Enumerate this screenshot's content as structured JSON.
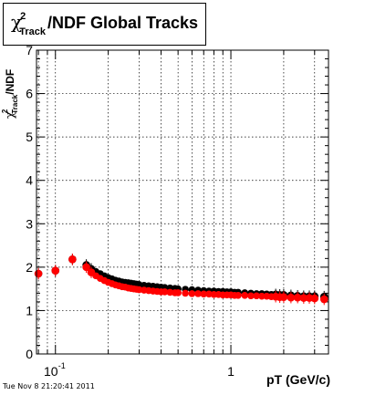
{
  "title": {
    "symbol": "χ",
    "superscript": "2",
    "subscript": "Track",
    "rest": "/NDF  Global Tracks"
  },
  "footer": {
    "timestamp": "Tue Nov  8 21:20:41 2011"
  },
  "chart_data": {
    "type": "scatter",
    "xlabel": "pT (GeV/c)",
    "ylabel": {
      "symbol": "χ",
      "superscript": "2",
      "subscript": "Track",
      "rest": "/NDF"
    },
    "x_scale": "log",
    "xlim": [
      0.078,
      3.6
    ],
    "ylim": [
      0,
      7
    ],
    "x_ticks": [
      {
        "value": 0.1,
        "base": "10",
        "exponent": "-1"
      },
      {
        "value": 1,
        "base": "1",
        "exponent": ""
      }
    ],
    "y_ticks": [
      "0",
      "1",
      "2",
      "3",
      "4",
      "5",
      "6",
      "7"
    ],
    "grid": true,
    "colors": {
      "black_series": "#000000",
      "red_series": "#ff0000"
    },
    "series": [
      {
        "color": "black",
        "x": [
          0.08,
          0.1,
          0.125,
          0.15,
          0.16,
          0.17,
          0.18,
          0.19,
          0.2,
          0.21,
          0.22,
          0.23,
          0.24,
          0.25,
          0.26,
          0.27,
          0.28,
          0.29,
          0.3,
          0.32,
          0.34,
          0.36,
          0.38,
          0.4,
          0.42,
          0.45,
          0.48,
          0.5,
          0.55,
          0.6,
          0.65,
          0.7,
          0.75,
          0.8,
          0.85,
          0.9,
          0.95,
          1.0,
          1.05,
          1.1,
          1.2,
          1.3,
          1.4,
          1.5,
          1.6,
          1.7,
          1.8,
          1.9,
          2.0,
          2.2,
          2.4,
          2.6,
          2.8,
          3.0,
          3.4
        ],
        "y": [
          1.85,
          1.92,
          2.18,
          2.05,
          1.96,
          1.9,
          1.85,
          1.8,
          1.76,
          1.73,
          1.7,
          1.68,
          1.66,
          1.65,
          1.64,
          1.63,
          1.62,
          1.61,
          1.6,
          1.58,
          1.57,
          1.56,
          1.55,
          1.54,
          1.53,
          1.52,
          1.51,
          1.5,
          1.49,
          1.48,
          1.47,
          1.46,
          1.45,
          1.45,
          1.44,
          1.44,
          1.43,
          1.43,
          1.42,
          1.42,
          1.41,
          1.4,
          1.39,
          1.39,
          1.38,
          1.37,
          1.37,
          1.36,
          1.36,
          1.35,
          1.34,
          1.33,
          1.33,
          1.33,
          1.32
        ]
      },
      {
        "color": "red",
        "x": [
          0.08,
          0.1,
          0.125,
          0.15,
          0.16,
          0.17,
          0.18,
          0.19,
          0.2,
          0.21,
          0.22,
          0.23,
          0.24,
          0.25,
          0.26,
          0.27,
          0.28,
          0.29,
          0.3,
          0.32,
          0.34,
          0.36,
          0.38,
          0.4,
          0.42,
          0.45,
          0.48,
          0.5,
          0.55,
          0.6,
          0.65,
          0.7,
          0.75,
          0.8,
          0.85,
          0.9,
          0.95,
          1.0,
          1.05,
          1.1,
          1.2,
          1.3,
          1.4,
          1.5,
          1.6,
          1.7,
          1.8,
          1.9,
          2.0,
          2.2,
          2.4,
          2.6,
          2.8,
          3.0,
          3.4
        ],
        "y": [
          1.85,
          1.92,
          2.18,
          2.0,
          1.88,
          1.8,
          1.74,
          1.69,
          1.65,
          1.62,
          1.59,
          1.57,
          1.55,
          1.54,
          1.52,
          1.51,
          1.5,
          1.49,
          1.48,
          1.47,
          1.46,
          1.45,
          1.44,
          1.43,
          1.43,
          1.42,
          1.41,
          1.41,
          1.4,
          1.39,
          1.39,
          1.38,
          1.38,
          1.37,
          1.37,
          1.36,
          1.36,
          1.36,
          1.35,
          1.35,
          1.35,
          1.34,
          1.34,
          1.33,
          1.33,
          1.32,
          1.32,
          1.31,
          1.31,
          1.3,
          1.3,
          1.29,
          1.29,
          1.28,
          1.26
        ]
      }
    ]
  }
}
